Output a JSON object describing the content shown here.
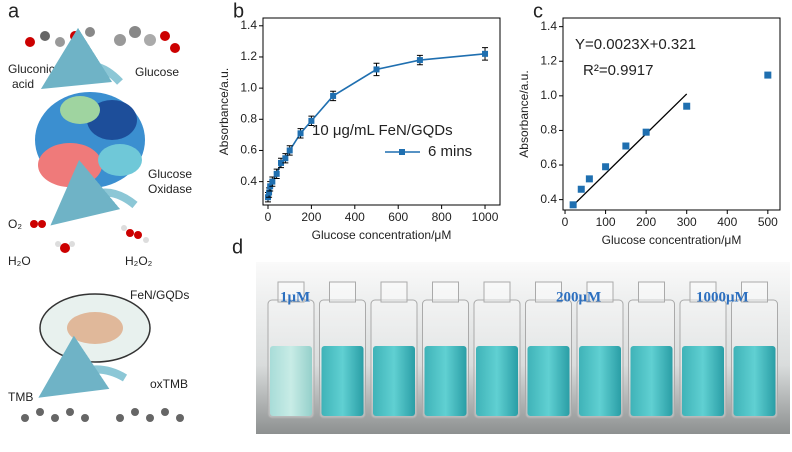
{
  "chart_data": [
    {
      "type": "line",
      "panel": "b",
      "xlabel": "Glucose concentration/μM",
      "ylabel": "Absorbance/a.u.",
      "annotation": "10 μg/mL FeN/GQDs",
      "x": [
        0,
        5,
        10,
        20,
        40,
        60,
        80,
        100,
        150,
        200,
        300,
        500,
        700,
        1000
      ],
      "series": [
        {
          "name": "6 mins",
          "color": "#1f6fb0",
          "values": [
            0.3,
            0.33,
            0.37,
            0.4,
            0.45,
            0.52,
            0.55,
            0.6,
            0.71,
            0.79,
            0.95,
            1.12,
            1.18,
            1.22
          ],
          "errors": [
            0.03,
            0.03,
            0.03,
            0.03,
            0.03,
            0.03,
            0.03,
            0.03,
            0.03,
            0.03,
            0.03,
            0.04,
            0.03,
            0.04
          ]
        }
      ],
      "xlim": [
        -23,
        1069
      ],
      "xticks": [
        0,
        200,
        400,
        600,
        800,
        1000
      ],
      "ylim": [
        0.25,
        1.45
      ],
      "yticks": [
        0.4,
        0.6,
        0.8,
        {
          "value": 1,
          "label": "1.0"
        },
        1.2,
        1.4
      ]
    },
    {
      "type": "scatter",
      "panel": "c",
      "xlabel": "Glucose concentration/μM",
      "ylabel": "Absorbance/a.u.",
      "annotations": [
        "Y=0.0023X+0.321",
        "R²=0.9917"
      ],
      "x": [
        20,
        40,
        60,
        100,
        150,
        200,
        300,
        500
      ],
      "series": [
        {
          "color": "#1f6fb0",
          "values": [
            0.37,
            0.46,
            0.52,
            0.59,
            0.71,
            0.79,
            0.94,
            1.12
          ]
        }
      ],
      "fit_line": {
        "color": "#000000",
        "x": [
          20,
          300
        ],
        "values": [
          0.367,
          1.011
        ]
      },
      "xlim": [
        -5,
        530
      ],
      "xticks": [
        0,
        100,
        200,
        300,
        400,
        500
      ],
      "ylim": [
        0.34,
        1.45
      ],
      "yticks": [
        0.4,
        0.6,
        0.8,
        {
          "value": 1,
          "label": "1.0"
        },
        1.2,
        1.4
      ]
    }
  ],
  "scheme": {
    "panel": "a",
    "gluconic_acid": [
      "Gluconic",
      "acid"
    ],
    "glucose": "Glucose",
    "enzyme": [
      "Glucose",
      "Oxidase"
    ],
    "o2": "O₂",
    "h2o": "H₂O",
    "h2o2": "H₂O₂",
    "catalyst": "FeN/GQDs",
    "tmb": "TMB",
    "oxtmb": "oxTMB"
  },
  "photo": {
    "panel": "d",
    "labels": [
      "1μM",
      "200μM",
      "1000μM"
    ]
  }
}
